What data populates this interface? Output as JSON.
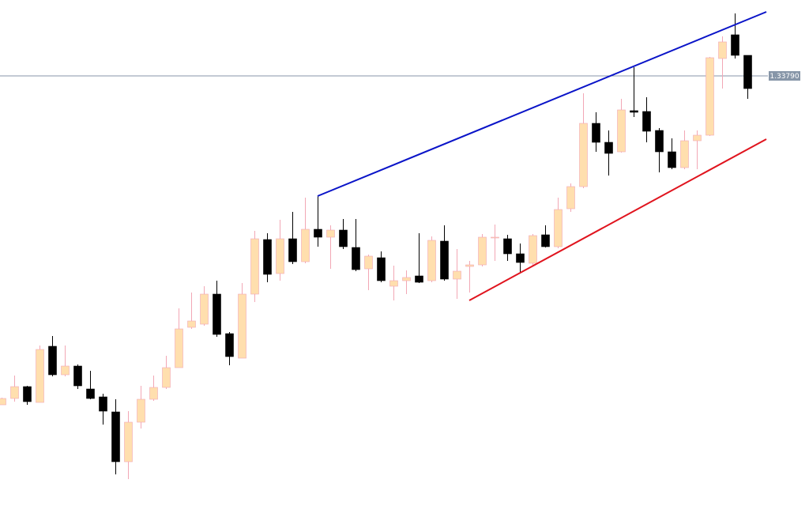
{
  "chart_data": {
    "type": "candlestick",
    "ylim": [
      1.3107,
      1.3427
    ],
    "xlim": [
      -0.125,
      63.875
    ],
    "up_color": "#ffdfae",
    "up_wick_color": "#f2a7b5",
    "down_color": "#000000",
    "open": [
      1.3171,
      1.3175,
      1.31825,
      1.31725,
      1.3208,
      1.319,
      1.31955,
      1.3181,
      1.3176,
      1.31665,
      1.3135,
      1.316,
      1.31745,
      1.3182,
      1.31945,
      1.322,
      1.3222,
      1.3241,
      1.3216,
      1.32005,
      1.3241,
      1.32755,
      1.3254,
      1.3276,
      1.32615,
      1.3282,
      1.3277,
      1.32815,
      1.32705,
      1.3257,
      1.3264,
      1.3246,
      1.32495,
      1.32525,
      1.32495,
      1.32745,
      1.32505,
      1.32585,
      1.32595,
      1.32765,
      1.3276,
      1.32665,
      1.32605,
      1.32785,
      1.3271,
      1.3295,
      1.3309,
      1.3349,
      1.3337,
      1.3331,
      1.3357,
      1.33565,
      1.33445,
      1.3331,
      1.3321,
      1.3338,
      1.33415,
      1.339,
      1.3405,
      1.3392
    ],
    "high": [
      1.31755,
      1.31895,
      1.3183,
      1.32085,
      1.32145,
      1.32085,
      1.31965,
      1.31925,
      1.3178,
      1.31745,
      1.3167,
      1.3183,
      1.31895,
      1.3202,
      1.3232,
      1.3242,
      1.3246,
      1.32495,
      1.3217,
      1.3248,
      1.3281,
      1.32795,
      1.3288,
      1.3293,
      1.3302,
      1.3303,
      1.32845,
      1.32885,
      1.32885,
      1.3266,
      1.3268,
      1.3259,
      1.3256,
      1.32795,
      1.32775,
      1.32845,
      1.32695,
      1.3262,
      1.3279,
      1.3285,
      1.32785,
      1.3273,
      1.3279,
      1.32845,
      1.3302,
      1.3311,
      1.3368,
      1.3356,
      1.33445,
      1.33645,
      1.33845,
      1.33655,
      1.3346,
      1.33395,
      1.33445,
      1.33445,
      1.3391,
      1.3404,
      1.34185,
      1.3392
    ],
    "low": [
      1.3171,
      1.3173,
      1.3171,
      1.31725,
      1.3189,
      1.3189,
      1.3181,
      1.31745,
      1.31585,
      1.3127,
      1.3124,
      1.3156,
      1.31735,
      1.3181,
      1.31945,
      1.3219,
      1.3221,
      1.3214,
      1.3196,
      1.32005,
      1.3236,
      1.32485,
      1.32495,
      1.326,
      1.32605,
      1.3271,
      1.3257,
      1.32695,
      1.32555,
      1.32435,
      1.32485,
      1.3237,
      1.3241,
      1.3248,
      1.32485,
      1.32495,
      1.3238,
      1.3242,
      1.32585,
      1.3262,
      1.3262,
      1.32545,
      1.3259,
      1.32705,
      1.327,
      1.3293,
      1.3308,
      1.3331,
      1.3316,
      1.33305,
      1.3353,
      1.3337,
      1.3318,
      1.332,
      1.332,
      1.332,
      1.3341,
      1.3371,
      1.339,
      1.33645
    ],
    "close": [
      1.3175,
      1.31825,
      1.3173,
      1.3206,
      1.319,
      1.31955,
      1.3183,
      1.3175,
      1.3167,
      1.3135,
      1.316,
      1.31745,
      1.3182,
      1.31945,
      1.3219,
      1.3224,
      1.3241,
      1.32155,
      1.32015,
      1.3241,
      1.3276,
      1.32535,
      1.3276,
      1.32615,
      1.3282,
      1.3277,
      1.32815,
      1.3271,
      1.32565,
      1.3265,
      1.32495,
      1.32495,
      1.32515,
      1.32485,
      1.3275,
      1.32505,
      1.32555,
      1.32595,
      1.3277,
      1.3277,
      1.32665,
      1.3261,
      1.3278,
      1.3271,
      1.32945,
      1.3309,
      1.3349,
      1.3337,
      1.333,
      1.33575,
      1.3356,
      1.3344,
      1.3331,
      1.3321,
      1.3338,
      1.33415,
      1.33905,
      1.34005,
      1.3392,
      1.3371
    ],
    "trend_lines": [
      {
        "color": "#0a14c8",
        "x": [
          25,
          60.5
        ],
        "y": [
          1.3303,
          1.34195
        ]
      },
      {
        "color": "#e0141e",
        "x": [
          37,
          60.5
        ],
        "y": [
          1.3237,
          1.3339
        ]
      }
    ],
    "price_line": {
      "value": 1.3379,
      "label": "1.33790",
      "color": "#8796a8"
    }
  }
}
